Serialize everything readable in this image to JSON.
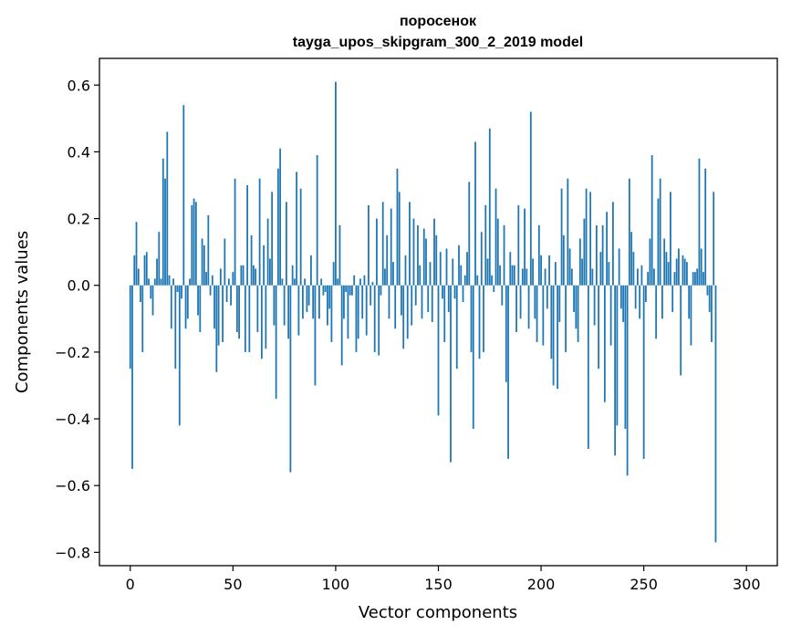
{
  "chart_data": {
    "type": "bar",
    "title": "поросенок",
    "subtitle": "tayga_upos_skipgram_300_2_2019 model",
    "xlabel": "Vector components",
    "ylabel": "Components values",
    "xlim": [
      -15,
      315
    ],
    "ylim": [
      -0.84,
      0.68
    ],
    "xticks": [
      0,
      50,
      100,
      150,
      200,
      250,
      300
    ],
    "xtick_labels": [
      "0",
      "50",
      "100",
      "150",
      "200",
      "250",
      "300"
    ],
    "yticks": [
      -0.8,
      -0.6,
      -0.4,
      -0.2,
      0.0,
      0.2,
      0.4,
      0.6
    ],
    "ytick_labels": [
      "−0.8",
      "−0.6",
      "−0.4",
      "−0.2",
      "0.0",
      "0.2",
      "0.4",
      "0.6"
    ],
    "bar_color": "#1f77b4",
    "grid": false,
    "values": [
      -0.25,
      -0.55,
      0.09,
      0.19,
      0.05,
      -0.05,
      -0.2,
      0.09,
      0.1,
      0.02,
      -0.04,
      -0.09,
      0.02,
      0.08,
      0.16,
      0.02,
      0.38,
      0.32,
      0.46,
      0.03,
      -0.13,
      0.02,
      -0.25,
      -0.02,
      -0.42,
      -0.04,
      0.54,
      -0.13,
      -0.1,
      0.02,
      0.24,
      0.26,
      0.25,
      -0.09,
      -0.14,
      0.14,
      0.12,
      0.04,
      0.21,
      -0.03,
      0.03,
      -0.13,
      -0.26,
      -0.18,
      0.05,
      -0.17,
      0.14,
      -0.05,
      0.02,
      -0.06,
      0.04,
      0.32,
      -0.14,
      -0.16,
      0.06,
      0.06,
      -0.2,
      0.3,
      -0.2,
      0.15,
      0.06,
      0.05,
      -0.14,
      0.32,
      -0.22,
      0.12,
      -0.19,
      0.2,
      0.08,
      0.28,
      -0.12,
      -0.34,
      0.35,
      0.41,
      0.02,
      -0.12,
      0.25,
      -0.16,
      -0.56,
      0.06,
      0.02,
      0.34,
      -0.15,
      0.29,
      -0.1,
      0.02,
      -0.08,
      -0.06,
      0.09,
      -0.1,
      -0.3,
      0.39,
      -0.1,
      0.02,
      -0.03,
      -0.02,
      -0.12,
      -0.07,
      -0.17,
      0.07,
      0.61,
      0.02,
      0.18,
      -0.24,
      -0.1,
      -0.02,
      -0.16,
      -0.03,
      -0.03,
      0.03,
      -0.2,
      -0.16,
      0.02,
      -0.1,
      0.03,
      -0.15,
      0.24,
      -0.06,
      0.01,
      -0.2,
      0.2,
      -0.21,
      -0.03,
      0.25,
      0.05,
      0.15,
      -0.1,
      0.23,
      0.07,
      -0.13,
      0.35,
      0.28,
      -0.09,
      -0.19,
      0.09,
      -0.16,
      0.25,
      -0.12,
      0.2,
      -0.06,
      0.18,
      0.06,
      -0.1,
      0.17,
      0.14,
      -0.08,
      0.07,
      -0.11,
      0.2,
      0.15,
      -0.39,
      0.1,
      -0.04,
      -0.17,
      0.11,
      -0.08,
      -0.53,
      0.08,
      -0.04,
      -0.25,
      0.12,
      0.06,
      -0.05,
      0.03,
      0.1,
      0.31,
      -0.2,
      -0.43,
      0.43,
      0.03,
      -0.22,
      0.16,
      -0.2,
      0.24,
      0.08,
      0.47,
      0.03,
      -0.02,
      0.29,
      0.2,
      0.06,
      -0.06,
      0.18,
      -0.29,
      -0.52,
      0.1,
      0.06,
      0.06,
      -0.14,
      0.24,
      -0.1,
      0.05,
      0.23,
      0.05,
      -0.13,
      0.52,
      0.08,
      -0.1,
      -0.17,
      0.18,
      0.09,
      -0.18,
      0.05,
      -0.07,
      0.09,
      -0.22,
      -0.3,
      0.07,
      -0.31,
      -0.11,
      0.29,
      0.15,
      -0.2,
      0.32,
      0.11,
      0.05,
      -0.08,
      -0.13,
      -0.17,
      0.14,
      0.08,
      0.2,
      0.29,
      -0.49,
      0.28,
      0.05,
      -0.12,
      0.18,
      -0.25,
      0.1,
      0.18,
      -0.35,
      0.22,
      0.07,
      -0.18,
      0.25,
      -0.51,
      -0.42,
      0.11,
      -0.07,
      -0.11,
      -0.43,
      -0.57,
      0.32,
      0.16,
      0.1,
      -0.07,
      0.05,
      -0.1,
      0.06,
      -0.52,
      -0.05,
      0.04,
      0.14,
      0.39,
      0.05,
      -0.16,
      0.26,
      0.32,
      -0.1,
      0.14,
      0.1,
      0.07,
      0.28,
      -0.08,
      0.04,
      0.08,
      0.11,
      -0.27,
      0.09,
      0.08,
      0.07,
      -0.1,
      -0.18,
      0.04,
      0.04,
      0.05,
      0.38,
      0.11,
      0.04,
      0.35,
      -0.03,
      -0.08,
      -0.17,
      0.28,
      -0.77
    ]
  }
}
